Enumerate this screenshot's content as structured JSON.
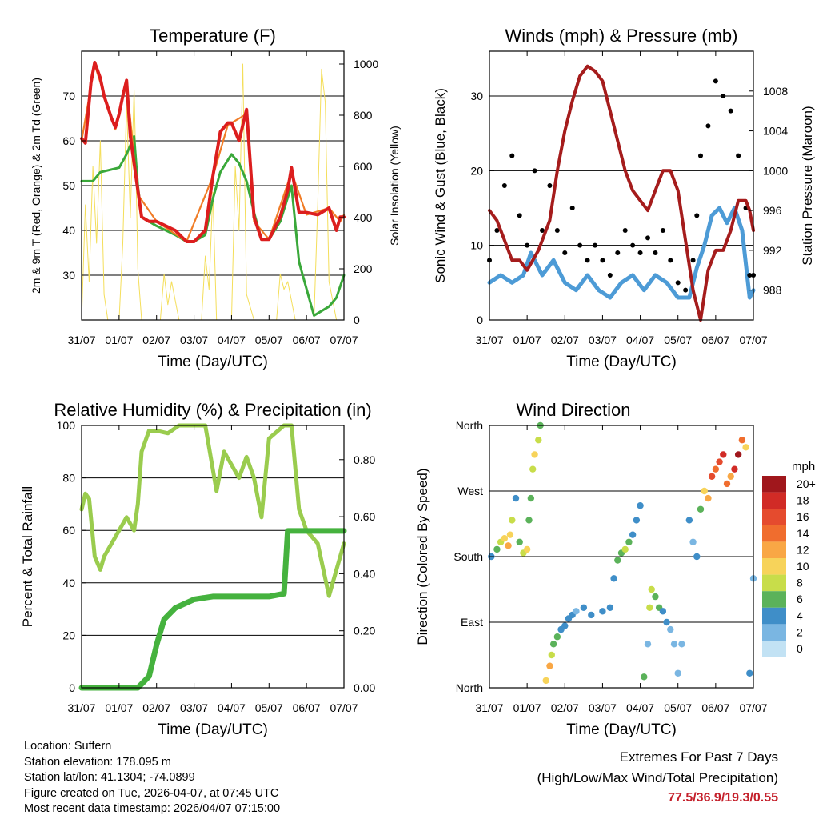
{
  "colors": {
    "temp2m": "#dc1e1e",
    "temp9m": "#f07c26",
    "dewpoint": "#3aa83a",
    "solar": "#f4de5a",
    "wind": "#4d9bd6",
    "gust": "#000000",
    "pressure": "#a51c1c",
    "rh": "#9acc4e",
    "precip": "#45b23e",
    "extremes_value": "#c41f2a"
  },
  "chart_data": [
    {
      "type": "line",
      "title": "Temperature (F)",
      "xlabel": "Time (Day/UTC)",
      "ylabel": "2m & 9m T (Red, Orange) & 2m Td (Green)",
      "y2label": "Solar Insolation (Yellow)",
      "x_ticks": [
        "31/07",
        "01/07",
        "02/07",
        "03/07",
        "04/07",
        "05/07",
        "06/07",
        "07/07"
      ],
      "xlim": [
        0,
        7
      ],
      "ylim": [
        20,
        80
      ],
      "y_ticks": [
        30,
        40,
        50,
        60,
        70
      ],
      "y2lim": [
        0,
        1050
      ],
      "y2_ticks": [
        0,
        200,
        400,
        600,
        800,
        1000
      ],
      "grid": true,
      "series": [
        {
          "name": "2m T",
          "axis": "left",
          "x": [
            0,
            0.1,
            0.25,
            0.35,
            0.5,
            0.6,
            0.8,
            0.9,
            1.0,
            1.1,
            1.2,
            1.3,
            1.5,
            1.6,
            1.8,
            2.0,
            2.5,
            2.8,
            3.0,
            3.3,
            3.5,
            3.7,
            3.9,
            4.0,
            4.2,
            4.4,
            4.6,
            4.8,
            5.0,
            5.3,
            5.5,
            5.6,
            5.8,
            6.0,
            6.3,
            6.6,
            6.8,
            6.9,
            7.0
          ],
          "values": [
            60.5,
            59.5,
            73,
            77.5,
            74,
            70,
            65,
            63,
            66,
            70,
            73.5,
            61,
            49,
            43,
            42,
            42,
            40,
            37.5,
            37.5,
            40,
            52,
            62,
            64,
            64,
            60,
            67,
            43,
            38,
            38,
            43,
            49,
            54,
            44,
            44,
            43.5,
            45,
            40,
            43,
            43
          ]
        },
        {
          "name": "9m T",
          "axis": "left",
          "x": [
            0,
            0.35,
            0.9,
            1.2,
            1.5,
            2.0,
            2.8,
            3.5,
            3.9,
            4.4,
            4.6,
            5.0,
            5.6,
            6.0,
            6.6,
            6.9,
            7.0
          ],
          "values": [
            60,
            77,
            62.5,
            73,
            48,
            42,
            37.5,
            52,
            63.5,
            66,
            42,
            38,
            53,
            43.5,
            45,
            42,
            43.5
          ]
        },
        {
          "name": "2m Td",
          "axis": "left",
          "x": [
            0,
            0.3,
            0.5,
            1.0,
            1.2,
            1.4,
            1.5,
            1.6,
            1.8,
            2.0,
            2.5,
            2.8,
            3.0,
            3.3,
            3.5,
            3.7,
            4.0,
            4.2,
            4.4,
            4.6,
            4.8,
            5.0,
            5.3,
            5.6,
            5.8,
            6.0,
            6.2,
            6.4,
            6.6,
            6.8,
            7.0
          ],
          "values": [
            51,
            51,
            53,
            54,
            57,
            61,
            50,
            43,
            42,
            41,
            39,
            37.5,
            37.5,
            39,
            47,
            53,
            57,
            55,
            51,
            44,
            38,
            38,
            42,
            50,
            33,
            27,
            21,
            22,
            23,
            25,
            30
          ]
        },
        {
          "name": "Solar Insolation",
          "axis": "right",
          "x": [
            0,
            0.1,
            0.2,
            0.3,
            0.4,
            0.5,
            0.6,
            0.7,
            1.0,
            1.1,
            1.2,
            1.3,
            1.4,
            1.45,
            1.5,
            1.6,
            1.8,
            2.1,
            2.2,
            2.3,
            2.4,
            2.6,
            2.8,
            3.0,
            3.2,
            3.3,
            3.4,
            3.5,
            3.6,
            3.8,
            4.0,
            4.1,
            4.2,
            4.3,
            4.4,
            4.6,
            4.9,
            5.2,
            5.3,
            5.4,
            5.5,
            5.7,
            5.9,
            6.0,
            6.2,
            6.3,
            6.4,
            6.5,
            6.6,
            6.8,
            7.0
          ],
          "values": [
            0,
            450,
            150,
            600,
            300,
            700,
            100,
            0,
            0,
            300,
            850,
            400,
            900,
            600,
            200,
            0,
            0,
            0,
            180,
            60,
            150,
            0,
            0,
            0,
            0,
            250,
            120,
            500,
            0,
            0,
            0,
            600,
            350,
            1000,
            100,
            0,
            0,
            0,
            180,
            120,
            150,
            0,
            0,
            0,
            0,
            450,
            980,
            850,
            150,
            0,
            0
          ]
        }
      ]
    },
    {
      "type": "line",
      "title": "Winds (mph) & Pressure (mb)",
      "xlabel": "Time (Day/UTC)",
      "ylabel": "Sonic Wind & Gust (Blue, Black)",
      "y2label": "Station Pressure (Maroon)",
      "x_ticks": [
        "31/07",
        "01/07",
        "02/07",
        "03/07",
        "04/07",
        "05/07",
        "06/07",
        "07/07"
      ],
      "xlim": [
        0,
        7
      ],
      "ylim": [
        0,
        36
      ],
      "y_ticks": [
        0,
        10,
        20,
        30
      ],
      "y2lim": [
        985,
        1012
      ],
      "y2_ticks": [
        988,
        992,
        996,
        1000,
        1004,
        1008
      ],
      "grid": true,
      "series": [
        {
          "name": "Wind",
          "axis": "left",
          "x": [
            0,
            0.3,
            0.6,
            0.9,
            1.1,
            1.4,
            1.7,
            2.0,
            2.3,
            2.6,
            2.9,
            3.2,
            3.5,
            3.8,
            4.1,
            4.4,
            4.7,
            5.0,
            5.3,
            5.5,
            5.7,
            5.9,
            6.1,
            6.3,
            6.5,
            6.7,
            6.9,
            7.0
          ],
          "values": [
            5,
            6,
            5,
            6,
            9,
            6,
            8,
            5,
            4,
            6,
            4,
            3,
            5,
            6,
            4,
            6,
            5,
            3,
            3,
            7,
            10,
            14,
            15,
            13,
            15,
            12,
            3,
            4
          ]
        },
        {
          "name": "Gust",
          "axis": "left",
          "x": [
            0,
            0.2,
            0.4,
            0.6,
            0.8,
            1.0,
            1.2,
            1.4,
            1.6,
            1.8,
            2.0,
            2.2,
            2.4,
            2.6,
            2.8,
            3.0,
            3.2,
            3.4,
            3.6,
            3.8,
            4.0,
            4.2,
            4.4,
            4.6,
            4.8,
            5.0,
            5.2,
            5.4,
            5.5,
            5.6,
            5.8,
            6.0,
            6.2,
            6.4,
            6.6,
            6.8,
            6.9,
            7.0
          ],
          "values": [
            8,
            12,
            18,
            22,
            14,
            10,
            20,
            12,
            18,
            12,
            9,
            15,
            10,
            8,
            10,
            8,
            6,
            9,
            12,
            10,
            9,
            11,
            9,
            12,
            8,
            5,
            4,
            8,
            14,
            22,
            26,
            32,
            30,
            28,
            22,
            15,
            6,
            6
          ]
        },
        {
          "name": "Station Pressure",
          "axis": "right",
          "x": [
            0,
            0.2,
            0.4,
            0.6,
            0.8,
            1.0,
            1.3,
            1.6,
            1.8,
            2.0,
            2.2,
            2.4,
            2.6,
            2.8,
            3.0,
            3.2,
            3.4,
            3.6,
            3.8,
            4.0,
            4.2,
            4.4,
            4.6,
            4.8,
            5.0,
            5.2,
            5.4,
            5.6,
            5.8,
            6.0,
            6.2,
            6.4,
            6.6,
            6.8,
            6.9,
            7.0
          ],
          "values": [
            996,
            995,
            993,
            991,
            991,
            990,
            992,
            995,
            1000,
            1004,
            1007,
            1009.5,
            1010.5,
            1010,
            1009,
            1006,
            1003,
            1000,
            998,
            997,
            996,
            998,
            1000,
            1000,
            998,
            993,
            988,
            985,
            990,
            992,
            992,
            994,
            997,
            997,
            996,
            994
          ]
        }
      ]
    },
    {
      "type": "line",
      "title": "Relative Humidity (%) & Precipitation (in)",
      "xlabel": "Time (Day/UTC)",
      "ylabel": "Percent & Total Rainfall",
      "x_ticks": [
        "31/07",
        "01/07",
        "02/07",
        "03/07",
        "04/07",
        "05/07",
        "06/07",
        "07/07"
      ],
      "xlim": [
        0,
        7
      ],
      "ylim": [
        0,
        100
      ],
      "y_ticks": [
        0,
        20,
        40,
        60,
        80,
        100
      ],
      "y2lim": [
        0,
        0.92
      ],
      "y2_ticks": [
        "0.00",
        "0.20",
        "0.40",
        "0.60",
        "0.80"
      ],
      "grid": true,
      "series": [
        {
          "name": "Relative Humidity",
          "axis": "left",
          "x": [
            0,
            0.1,
            0.2,
            0.35,
            0.5,
            0.6,
            0.8,
            1.0,
            1.2,
            1.4,
            1.5,
            1.6,
            1.8,
            2.0,
            2.3,
            2.6,
            3.0,
            3.3,
            3.6,
            3.8,
            4.0,
            4.2,
            4.4,
            4.6,
            4.8,
            5.0,
            5.4,
            5.6,
            5.8,
            6.0,
            6.3,
            6.6,
            6.8,
            7.0
          ],
          "values": [
            68,
            74,
            72,
            50,
            45,
            50,
            55,
            60,
            65,
            60,
            70,
            90,
            98,
            98,
            97,
            100,
            100,
            100,
            75,
            90,
            85,
            80,
            88,
            80,
            65,
            95,
            100,
            100,
            68,
            60,
            55,
            35,
            45,
            55
          ]
        },
        {
          "name": "Total Precipitation",
          "axis": "right",
          "x": [
            0,
            1.5,
            1.8,
            2.0,
            2.2,
            2.5,
            3.0,
            3.5,
            4.0,
            4.5,
            5.0,
            5.4,
            5.5,
            6.0,
            7.0
          ],
          "values": [
            0,
            0,
            0.04,
            0.15,
            0.24,
            0.28,
            0.31,
            0.32,
            0.32,
            0.32,
            0.32,
            0.33,
            0.55,
            0.55,
            0.55
          ]
        }
      ]
    },
    {
      "type": "scatter",
      "title": "Wind Direction",
      "xlabel": "Time (Day/UTC)",
      "ylabel": "Direction (Colored By Speed)",
      "x_ticks": [
        "31/07",
        "01/07",
        "02/07",
        "03/07",
        "04/07",
        "05/07",
        "06/07",
        "07/07"
      ],
      "xlim": [
        0,
        7
      ],
      "ylim": [
        0,
        360
      ],
      "y_tick_values": [
        0,
        90,
        180,
        270,
        360
      ],
      "y_tick_labels": [
        "North",
        "East",
        "South",
        "West",
        "North"
      ],
      "grid": true,
      "legend": {
        "title": "mph",
        "labels": [
          "20+",
          "18",
          "16",
          "14",
          "12",
          "10",
          "8",
          "6",
          "4",
          "2",
          "0"
        ],
        "colors": [
          "#a0171c",
          "#d12b26",
          "#e54b2e",
          "#f06d2e",
          "#f9a745",
          "#f7d35a",
          "#c8dd4a",
          "#5bb25a",
          "#3f8ec8",
          "#7ab6e2",
          "#c2e2f4"
        ]
      },
      "series": [
        {
          "name": "Wind direction",
          "x": [
            0.05,
            0.2,
            0.3,
            0.4,
            0.5,
            0.55,
            0.6,
            0.7,
            0.8,
            0.9,
            1.0,
            1.05,
            1.1,
            1.15,
            1.2,
            1.3,
            1.35,
            1.5,
            1.6,
            1.65,
            1.7,
            1.8,
            1.9,
            2.0,
            2.1,
            2.2,
            2.3,
            2.5,
            2.7,
            3.0,
            3.2,
            3.3,
            3.4,
            3.5,
            3.6,
            3.7,
            3.8,
            3.9,
            4.0,
            4.1,
            4.2,
            4.25,
            4.3,
            4.4,
            4.5,
            4.6,
            4.7,
            4.8,
            4.9,
            5.0,
            5.1,
            5.3,
            5.4,
            5.5,
            5.6,
            5.7,
            5.8,
            5.9,
            6.0,
            6.1,
            6.2,
            6.3,
            6.4,
            6.5,
            6.6,
            6.7,
            6.8,
            6.9,
            7.0
          ],
          "values": [
            180,
            190,
            200,
            205,
            195,
            210,
            230,
            260,
            200,
            185,
            190,
            230,
            260,
            300,
            320,
            340,
            360,
            10,
            30,
            45,
            60,
            70,
            80,
            85,
            95,
            100,
            105,
            110,
            100,
            105,
            110,
            150,
            175,
            185,
            190,
            200,
            210,
            230,
            250,
            15,
            60,
            110,
            135,
            125,
            110,
            105,
            90,
            80,
            60,
            20,
            60,
            230,
            200,
            180,
            245,
            270,
            260,
            290,
            300,
            310,
            320,
            280,
            290,
            300,
            320,
            340,
            330,
            20,
            150
          ],
          "speeds": [
            3,
            6,
            8,
            10,
            11,
            9,
            7,
            4,
            5,
            8,
            9,
            6,
            5,
            7,
            9,
            8,
            6,
            9,
            11,
            8,
            6,
            5,
            4,
            3,
            4,
            3,
            2,
            3,
            4,
            3,
            4,
            4,
            5,
            6,
            8,
            6,
            4,
            3,
            3,
            6,
            2,
            8,
            7,
            6,
            5,
            4,
            3,
            2,
            2,
            2,
            1,
            3,
            2,
            3,
            5,
            9,
            12,
            15,
            14,
            16,
            18,
            13,
            12,
            17,
            20,
            14,
            10,
            3,
            2
          ]
        }
      ]
    }
  ],
  "info": {
    "location": "Location: Suffern",
    "elevation": "Station elevation: 178.095 m",
    "latlon": "Station lat/lon: 41.1304; -74.0899",
    "created": "Figure created on Tue, 2026-04-07, at 07:45 UTC",
    "recent": "Most recent data timestamp: 2026/04/07 07:15:00"
  },
  "extremes": {
    "heading": "Extremes For Past 7 Days",
    "subheading": "(High/Low/Max Wind/Total Precipitation)",
    "values": "77.5/36.9/19.3/0.55"
  }
}
